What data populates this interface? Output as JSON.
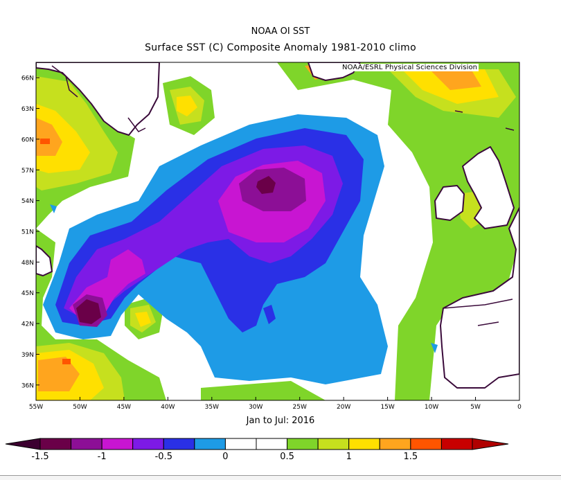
{
  "header": {
    "title_line1": "NOAA OI SST",
    "title_line2": "Surface SST (C) Composite Anomaly 1981-2010 climo",
    "credit": "NOAA/ESRL Physical Sciences Division",
    "period": "Jan to Jul: 2016"
  },
  "map_data": {
    "region": "North Atlantic",
    "lat_ticks": [
      "66N",
      "63N",
      "60N",
      "57N",
      "54N",
      "51N",
      "48N",
      "45N",
      "42N",
      "39N",
      "36N"
    ],
    "lon_ticks": [
      "55W",
      "50W",
      "45W",
      "40W",
      "35W",
      "30W",
      "25W",
      "20W",
      "15W",
      "10W",
      "5W",
      "0"
    ],
    "lon_range": [
      -55,
      0
    ],
    "lat_range": [
      34.5,
      67.5
    ]
  },
  "colorbar": {
    "tick_labels": [
      "-1.5",
      "-1",
      "-0.5",
      "0",
      "0.5",
      "1",
      "1.5"
    ],
    "colors": [
      "#6a0048",
      "#8c0f96",
      "#c815d2",
      "#7d1ae6",
      "#2a30e6",
      "#1e9be6",
      "#ffffff",
      "#ffffff",
      "#7fd52a",
      "#c6e01e",
      "#ffe000",
      "#ffa51e",
      "#ff5500",
      "#c80000"
    ]
  }
}
